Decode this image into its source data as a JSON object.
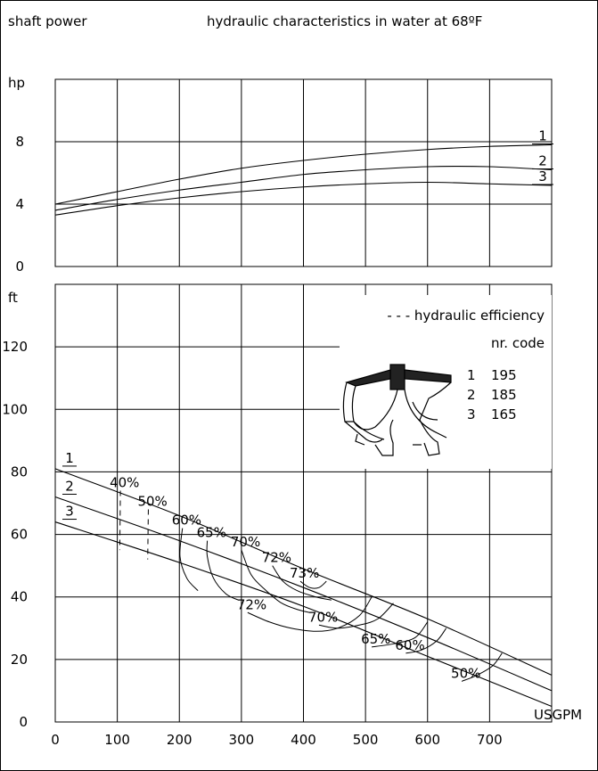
{
  "header": {
    "left_label": "shaft power",
    "title": "hydraulic characteristics in water at 68ºF"
  },
  "legend": {
    "efficiency_label": "- - - hydraulic efficiency",
    "table_header": "nr.  code",
    "rows": [
      {
        "nr": "1",
        "code": "195"
      },
      {
        "nr": "2",
        "code": "185"
      },
      {
        "nr": "3",
        "code": "165"
      }
    ]
  },
  "chart_data": [
    {
      "type": "line",
      "panel": "power",
      "ylabel": "hp",
      "xlabel": "USGPM",
      "xlim": [
        0,
        800
      ],
      "ylim": [
        0,
        12
      ],
      "y_ticks": [
        "0",
        "4",
        "8"
      ],
      "series": [
        {
          "name": "1",
          "x": [
            0,
            100,
            200,
            300,
            400,
            500,
            600,
            700,
            800
          ],
          "y": [
            4.0,
            4.8,
            5.6,
            6.3,
            6.8,
            7.2,
            7.5,
            7.7,
            7.8
          ]
        },
        {
          "name": "2",
          "x": [
            0,
            100,
            200,
            300,
            400,
            500,
            600,
            700,
            800
          ],
          "y": [
            3.6,
            4.3,
            4.9,
            5.4,
            5.9,
            6.2,
            6.4,
            6.4,
            6.2
          ]
        },
        {
          "name": "3",
          "x": [
            0,
            100,
            200,
            300,
            400,
            500,
            600,
            700,
            800
          ],
          "y": [
            3.3,
            3.9,
            4.4,
            4.8,
            5.1,
            5.3,
            5.4,
            5.3,
            5.2
          ]
        }
      ]
    },
    {
      "type": "line",
      "panel": "head",
      "ylabel": "ft",
      "xlabel": "USGPM",
      "xlim": [
        0,
        800
      ],
      "ylim": [
        0,
        140
      ],
      "x_ticks": [
        "0",
        "100",
        "200",
        "300",
        "400",
        "500",
        "600",
        "700"
      ],
      "y_ticks": [
        "0",
        "20",
        "40",
        "60",
        "80",
        "100",
        "120"
      ],
      "series": [
        {
          "name": "1",
          "x": [
            0,
            200,
            400,
            600,
            800
          ],
          "y": [
            81,
            66,
            49,
            33,
            15
          ]
        },
        {
          "name": "2",
          "x": [
            0,
            200,
            400,
            600,
            800
          ],
          "y": [
            72,
            58,
            43,
            27,
            10
          ]
        },
        {
          "name": "3",
          "x": [
            0,
            200,
            400,
            600,
            800
          ],
          "y": [
            64,
            51,
            37,
            21,
            5
          ]
        }
      ],
      "efficiency_curves": [
        {
          "label": "40%",
          "x": [
            105,
            104
          ],
          "y": [
            74,
            55
          ]
        },
        {
          "label": "50%",
          "x": [
            150,
            149
          ],
          "y": [
            68,
            52
          ]
        },
        {
          "label": "60%",
          "x": [
            205,
            201,
            212,
            230
          ],
          "y": [
            62,
            53,
            46,
            42
          ]
        },
        {
          "label": "65%",
          "x": [
            245,
            245,
            255,
            275,
            295
          ],
          "y": [
            58,
            53,
            46,
            41,
            39
          ]
        },
        {
          "label": "70%",
          "x": [
            300,
            316,
            340,
            365,
            390,
            410
          ],
          "y": [
            55,
            47,
            42,
            38,
            36,
            35
          ]
        },
        {
          "label": "72%",
          "x": [
            350,
            367,
            390,
            420,
            445
          ],
          "y": [
            50,
            45,
            42,
            40,
            39
          ]
        },
        {
          "label": "73%",
          "x": [
            395,
            410,
            425,
            437
          ],
          "y": [
            45,
            43,
            43,
            45
          ]
        },
        {
          "label": "72%",
          "x": [
            310,
            345,
            380,
            420,
            455,
            490,
            510
          ],
          "y": [
            35,
            32,
            30,
            29,
            30,
            34,
            40
          ]
        },
        {
          "label": "70%",
          "x": [
            425,
            455,
            490,
            520,
            545
          ],
          "y": [
            31,
            30,
            31,
            33,
            38
          ]
        },
        {
          "label": "65%",
          "x": [
            510,
            545,
            580,
            600
          ],
          "y": [
            24,
            25,
            27,
            32
          ]
        },
        {
          "label": "60%",
          "x": [
            565,
            590,
            615,
            630
          ],
          "y": [
            22,
            23,
            26,
            30
          ]
        },
        {
          "label": "50%",
          "x": [
            655,
            680,
            705,
            720
          ],
          "y": [
            13,
            15,
            18,
            22
          ]
        }
      ]
    }
  ]
}
